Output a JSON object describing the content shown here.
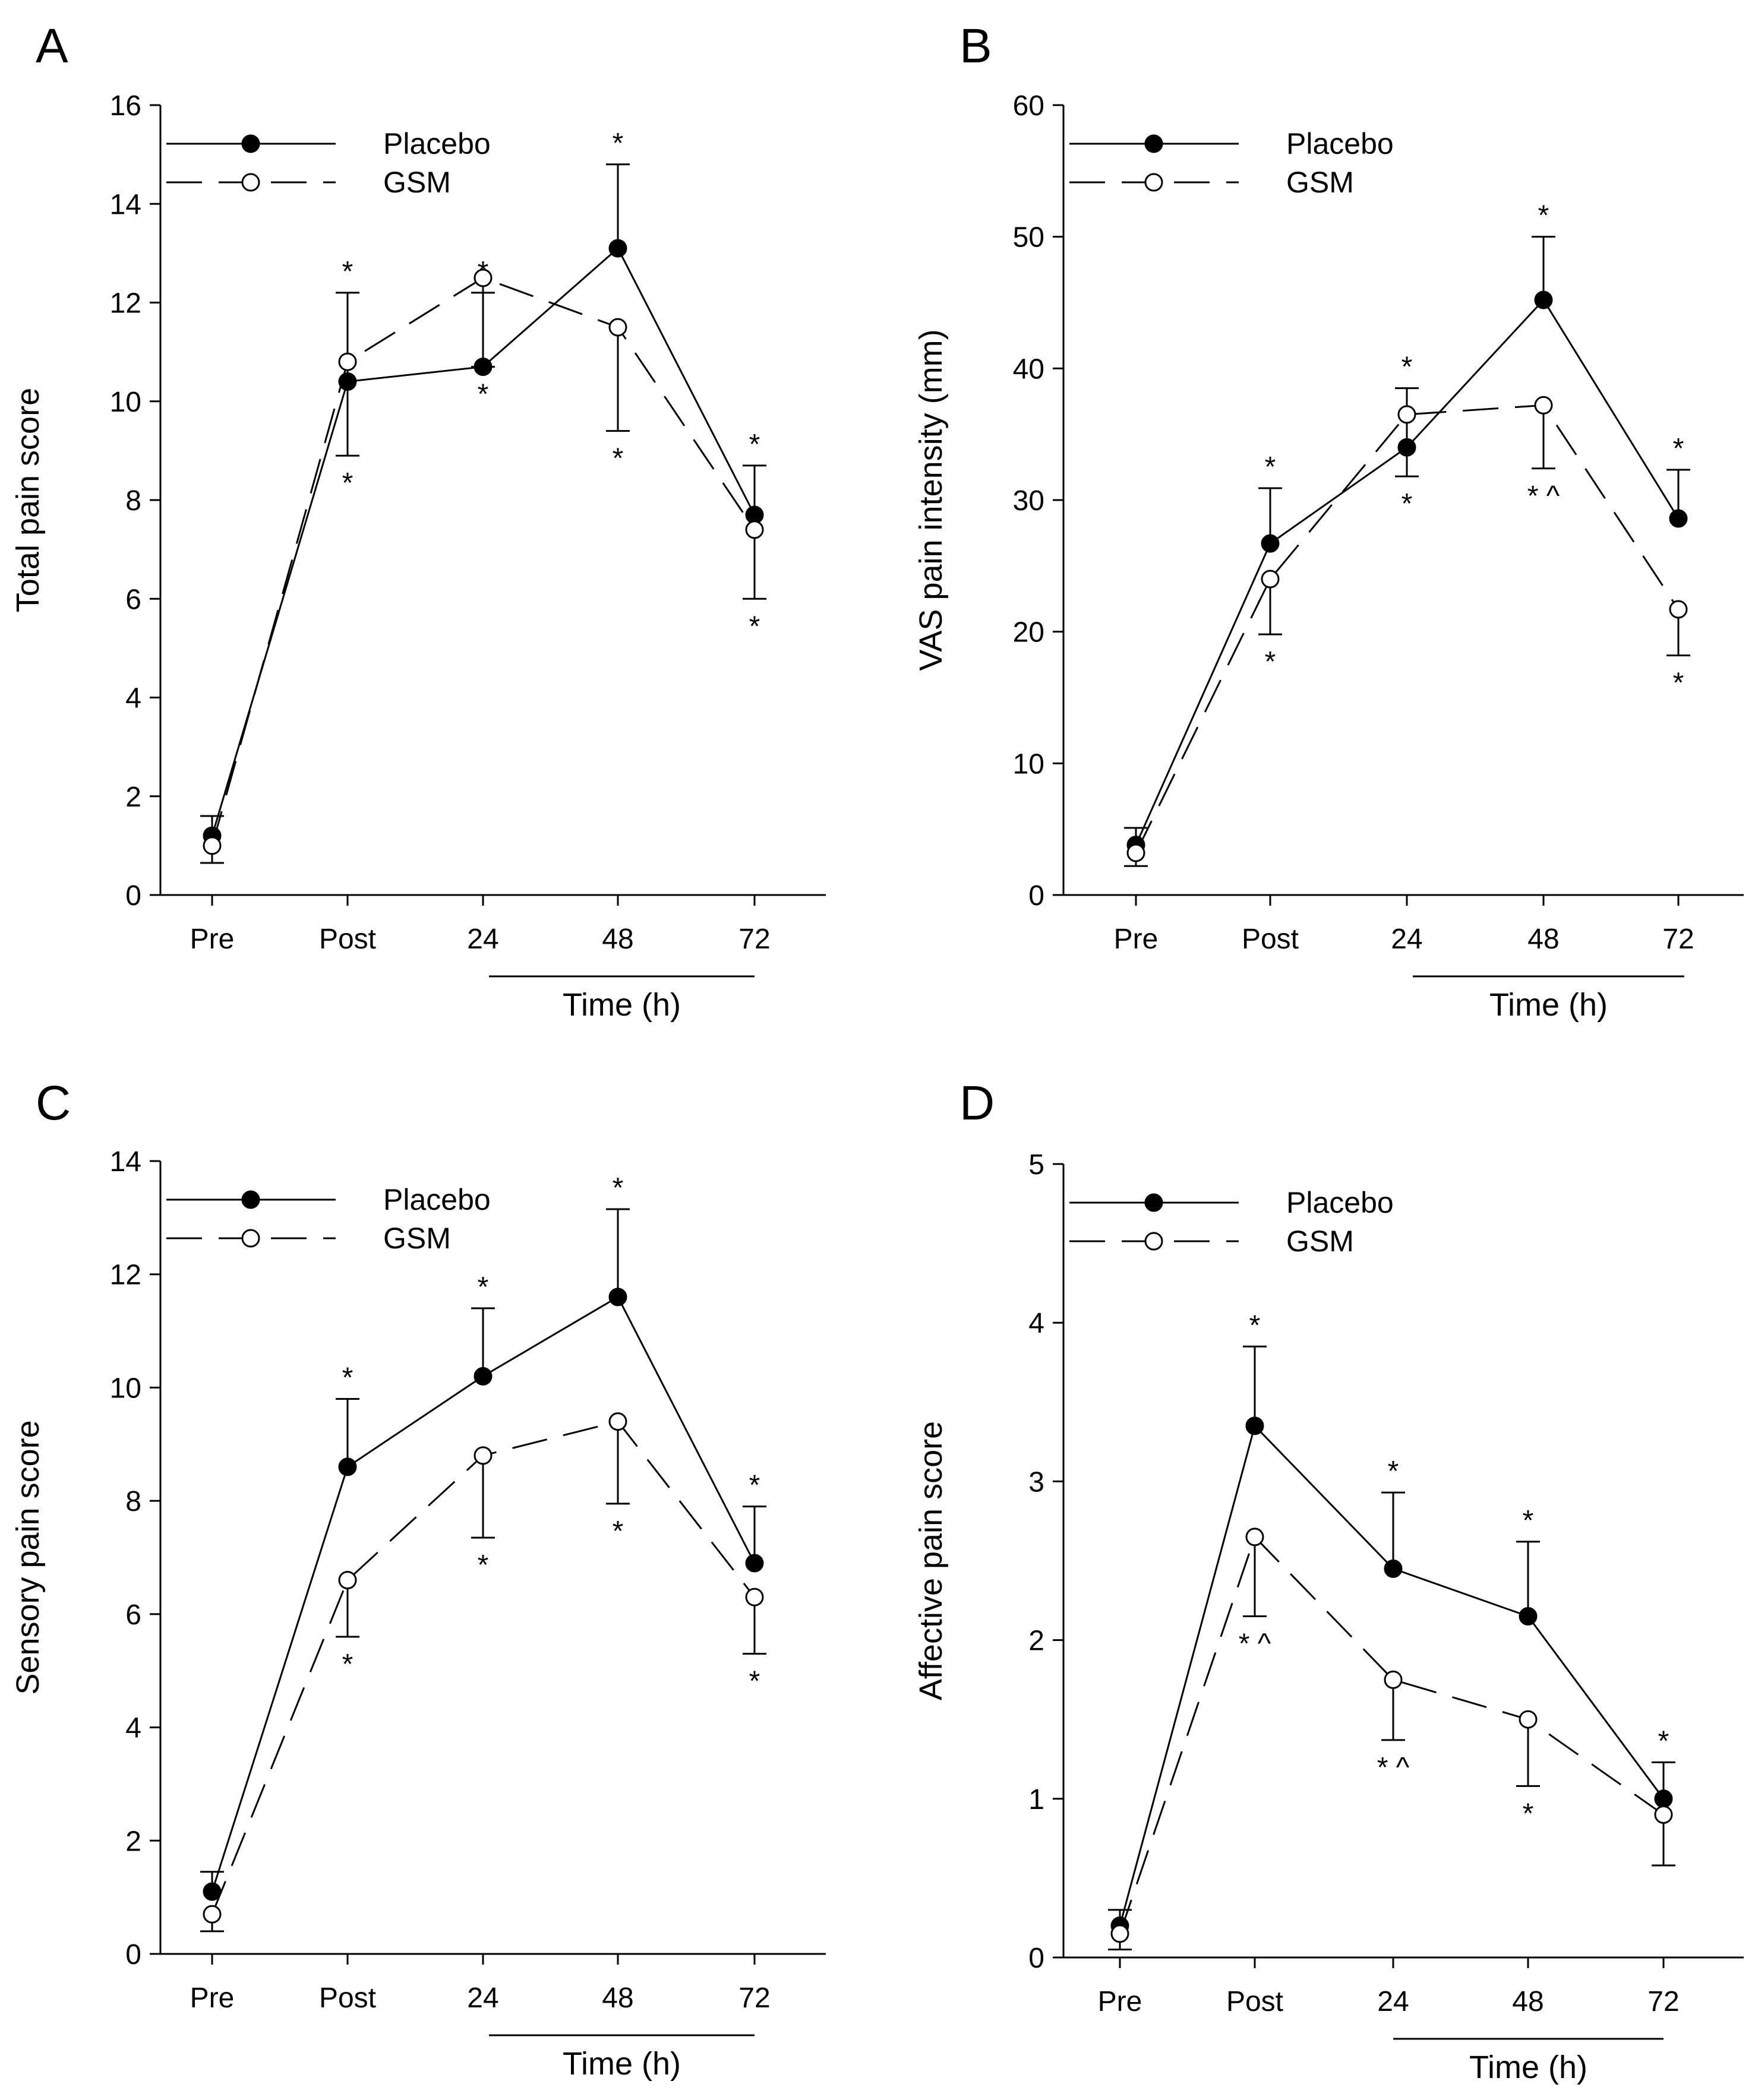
{
  "chart_data": [
    {
      "panel": "A",
      "type": "line",
      "categories": [
        "Pre",
        "Post",
        "24",
        "48",
        "72"
      ],
      "xlabel": "Time (h)",
      "ylabel": "Total pain score",
      "ylim": [
        0,
        16
      ],
      "yticks": [
        0,
        2,
        4,
        6,
        8,
        10,
        12,
        14,
        16
      ],
      "grid": false,
      "legend_position": "top-left",
      "series": [
        {
          "name": "Placebo",
          "marker": "filled-circle",
          "line": "solid",
          "values": [
            1.2,
            10.4,
            10.7,
            13.1,
            7.7
          ],
          "err": [
            0.4,
            1.8,
            1.5,
            1.7,
            1.0
          ],
          "marks": [
            "",
            "*",
            "*",
            "*",
            "*"
          ]
        },
        {
          "name": "GSM",
          "marker": "open-circle",
          "line": "dashed",
          "values": [
            1.0,
            10.8,
            12.5,
            11.5,
            7.4
          ],
          "err": [
            0.35,
            1.9,
            1.8,
            2.1,
            1.4
          ],
          "marks": [
            "",
            "*",
            "*",
            "*",
            "*"
          ]
        }
      ]
    },
    {
      "panel": "B",
      "type": "line",
      "categories": [
        "Pre",
        "Post",
        "24",
        "48",
        "72"
      ],
      "xlabel": "Time (h)",
      "ylabel": "VAS pain intensity (mm)",
      "ylim": [
        0,
        60
      ],
      "yticks": [
        0,
        10,
        20,
        30,
        40,
        50,
        60
      ],
      "grid": false,
      "legend_position": "top-left",
      "series": [
        {
          "name": "Placebo",
          "marker": "filled-circle",
          "line": "solid",
          "values": [
            3.8,
            26.7,
            34.0,
            45.2,
            28.6
          ],
          "err": [
            1.3,
            4.2,
            4.5,
            4.8,
            3.7
          ],
          "marks": [
            "",
            "*",
            "*",
            "*",
            "*"
          ]
        },
        {
          "name": "GSM",
          "marker": "open-circle",
          "line": "dashed",
          "values": [
            3.2,
            24.0,
            36.5,
            37.2,
            21.7
          ],
          "err": [
            1.0,
            4.2,
            4.7,
            4.8,
            3.5
          ],
          "marks": [
            "",
            "*",
            "*",
            "* ^",
            "*"
          ]
        }
      ]
    },
    {
      "panel": "C",
      "type": "line",
      "categories": [
        "Pre",
        "Post",
        "24",
        "48",
        "72"
      ],
      "xlabel": "Time (h)",
      "ylabel": "Sensory pain score",
      "ylim": [
        0,
        14
      ],
      "yticks": [
        0,
        2,
        4,
        6,
        8,
        10,
        12,
        14
      ],
      "grid": false,
      "legend_position": "top-left",
      "series": [
        {
          "name": "Placebo",
          "marker": "filled-circle",
          "line": "solid",
          "values": [
            1.1,
            8.6,
            10.2,
            11.6,
            6.9
          ],
          "err": [
            0.35,
            1.2,
            1.2,
            1.55,
            1.0
          ],
          "marks": [
            "",
            "*",
            "*",
            "*",
            "*"
          ]
        },
        {
          "name": "GSM",
          "marker": "open-circle",
          "line": "dashed",
          "values": [
            0.7,
            6.6,
            8.8,
            9.4,
            6.3
          ],
          "err": [
            0.3,
            1.0,
            1.45,
            1.45,
            1.0
          ],
          "marks": [
            "",
            "*",
            "*",
            "*",
            "*"
          ]
        }
      ]
    },
    {
      "panel": "D",
      "type": "line",
      "categories": [
        "Pre",
        "Post",
        "24",
        "48",
        "72"
      ],
      "xlabel": "Time (h)",
      "ylabel": "Affective pain score",
      "ylim": [
        0,
        5
      ],
      "yticks": [
        0,
        1,
        2,
        3,
        4,
        5
      ],
      "grid": false,
      "legend_position": "top-left",
      "series": [
        {
          "name": "Placebo",
          "marker": "filled-circle",
          "line": "solid",
          "values": [
            0.2,
            3.35,
            2.45,
            2.15,
            1.0
          ],
          "err": [
            0.1,
            0.5,
            0.48,
            0.47,
            0.23
          ],
          "marks": [
            "",
            "*",
            "*",
            "*",
            "*"
          ]
        },
        {
          "name": "GSM",
          "marker": "open-circle",
          "line": "dashed",
          "values": [
            0.15,
            2.65,
            1.75,
            1.5,
            0.9
          ],
          "err": [
            0.1,
            0.5,
            0.38,
            0.42,
            0.32
          ],
          "marks": [
            "",
            "* ^",
            "* ^",
            "*",
            ""
          ]
        }
      ]
    }
  ]
}
